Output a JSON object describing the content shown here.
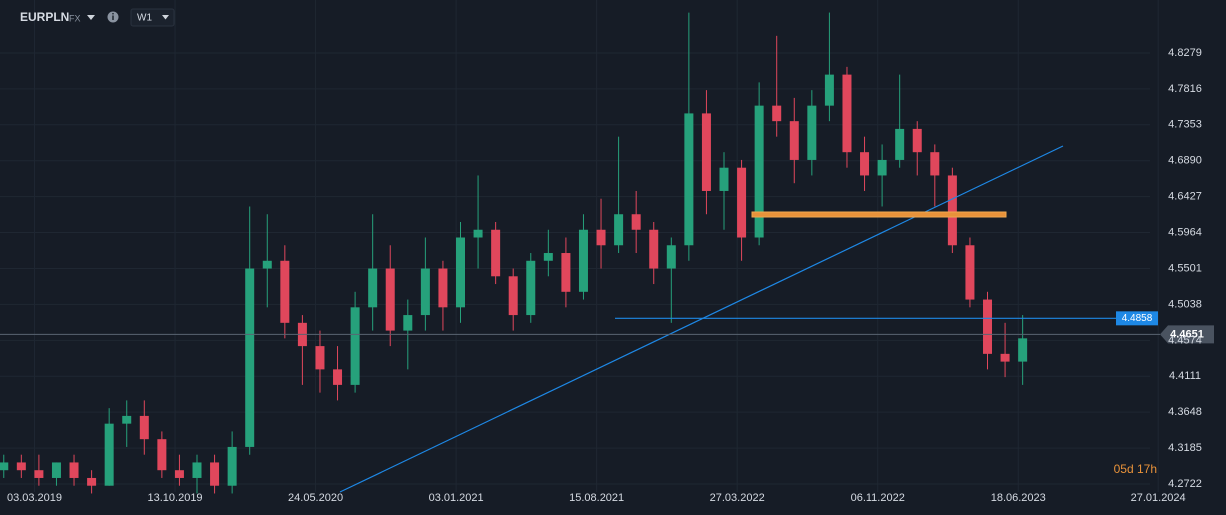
{
  "toolbar": {
    "symbol": "EURPLN",
    "market": "FX",
    "timeframe": "W1"
  },
  "chart_data": {
    "type": "candlestick",
    "x": [
      "13.01.2019",
      "10.02.2019",
      "10.03.2019",
      "07.04.2019",
      "05.05.2019",
      "02.06.2019",
      "30.06.2019",
      "28.07.2019",
      "25.08.2019",
      "22.09.2019",
      "20.10.2019",
      "17.11.2019",
      "15.12.2019",
      "12.01.2020",
      "09.02.2020",
      "08.03.2020",
      "05.04.2020",
      "03.05.2020",
      "31.05.2020",
      "28.06.2020",
      "26.07.2020",
      "23.08.2020",
      "20.09.2020",
      "18.10.2020",
      "15.11.2020",
      "13.12.2020",
      "10.01.2021",
      "07.02.2021",
      "07.03.2021",
      "04.04.2021",
      "02.05.2021",
      "30.05.2021",
      "27.06.2021",
      "25.07.2021",
      "22.08.2021",
      "19.09.2021",
      "17.10.2021",
      "14.11.2021",
      "12.12.2021",
      "09.01.2022",
      "06.02.2022",
      "06.03.2022",
      "03.04.2022",
      "01.05.2022",
      "29.05.2022",
      "26.06.2022",
      "24.07.2022",
      "21.08.2022",
      "18.09.2022",
      "16.10.2022",
      "13.11.2022",
      "11.12.2022",
      "08.01.2023",
      "05.02.2023",
      "05.03.2023",
      "02.04.2023",
      "30.04.2023",
      "28.05.2023",
      "25.06.2023"
    ],
    "open": [
      4.29,
      4.3,
      4.29,
      4.28,
      4.3,
      4.28,
      4.27,
      4.35,
      4.36,
      4.33,
      4.29,
      4.28,
      4.3,
      4.27,
      4.32,
      4.55,
      4.56,
      4.48,
      4.45,
      4.42,
      4.4,
      4.5,
      4.55,
      4.47,
      4.49,
      4.55,
      4.5,
      4.59,
      4.6,
      4.54,
      4.49,
      4.56,
      4.57,
      4.52,
      4.6,
      4.58,
      4.62,
      4.6,
      4.55,
      4.58,
      4.75,
      4.65,
      4.68,
      4.59,
      4.76,
      4.74,
      4.69,
      4.76,
      4.8,
      4.7,
      4.67,
      4.69,
      4.73,
      4.7,
      4.67,
      4.58,
      4.51,
      4.44,
      4.43
    ],
    "high": [
      4.31,
      4.31,
      4.31,
      4.3,
      4.31,
      4.29,
      4.37,
      4.38,
      4.38,
      4.34,
      4.31,
      4.31,
      4.31,
      4.34,
      4.63,
      4.62,
      4.58,
      4.49,
      4.47,
      4.45,
      4.52,
      4.62,
      4.58,
      4.51,
      4.59,
      4.56,
      4.61,
      4.67,
      4.61,
      4.55,
      4.57,
      4.6,
      4.59,
      4.62,
      4.64,
      4.72,
      4.65,
      4.61,
      4.59,
      4.88,
      4.78,
      4.7,
      4.69,
      4.79,
      4.85,
      4.77,
      4.78,
      4.88,
      4.81,
      4.72,
      4.71,
      4.8,
      4.74,
      4.71,
      4.68,
      4.59,
      4.52,
      4.48,
      4.49
    ],
    "low": [
      4.28,
      4.28,
      4.27,
      4.27,
      4.27,
      4.26,
      4.27,
      4.32,
      4.31,
      4.28,
      4.27,
      4.26,
      4.26,
      4.26,
      4.31,
      4.5,
      4.46,
      4.4,
      4.39,
      4.38,
      4.39,
      4.47,
      4.45,
      4.42,
      4.47,
      4.47,
      4.48,
      4.55,
      4.53,
      4.47,
      4.48,
      4.54,
      4.5,
      4.51,
      4.55,
      4.57,
      4.57,
      4.53,
      4.48,
      4.56,
      4.62,
      4.6,
      4.56,
      4.58,
      4.72,
      4.66,
      4.67,
      4.74,
      4.68,
      4.65,
      4.63,
      4.68,
      4.67,
      4.63,
      4.57,
      4.5,
      4.42,
      4.41,
      4.4
    ],
    "close": [
      4.3,
      4.29,
      4.28,
      4.3,
      4.28,
      4.27,
      4.35,
      4.36,
      4.33,
      4.29,
      4.28,
      4.3,
      4.27,
      4.32,
      4.55,
      4.56,
      4.48,
      4.45,
      4.42,
      4.4,
      4.5,
      4.55,
      4.47,
      4.49,
      4.55,
      4.5,
      4.59,
      4.6,
      4.54,
      4.49,
      4.56,
      4.57,
      4.52,
      4.6,
      4.58,
      4.62,
      4.6,
      4.55,
      4.58,
      4.75,
      4.65,
      4.68,
      4.59,
      4.76,
      4.74,
      4.69,
      4.76,
      4.8,
      4.7,
      4.67,
      4.69,
      4.73,
      4.7,
      4.67,
      4.58,
      4.51,
      4.44,
      4.43,
      4.46
    ],
    "up_color": "#26a17b",
    "down_color": "#e0475c",
    "xlim": [
      "07.01.2019",
      "14.01.2024"
    ],
    "xticks": [
      "03.03.2019",
      "13.10.2019",
      "24.05.2020",
      "03.01.2021",
      "15.08.2021",
      "27.03.2022",
      "06.11.2022",
      "18.06.2023",
      "27.01.2024"
    ],
    "ylim": [
      4.2619,
      4.8962
    ],
    "yticks": [
      4.2722,
      4.3185,
      4.3648,
      4.4111,
      4.4574,
      4.5038,
      4.5501,
      4.5964,
      4.6427,
      {
        "value": 4.689,
        "label": "4.6890"
      },
      4.7353,
      4.7816,
      4.8279
    ],
    "grid": true,
    "level_line": 4.4858,
    "last_price": 4.4651,
    "countdown": "05d 17h"
  }
}
